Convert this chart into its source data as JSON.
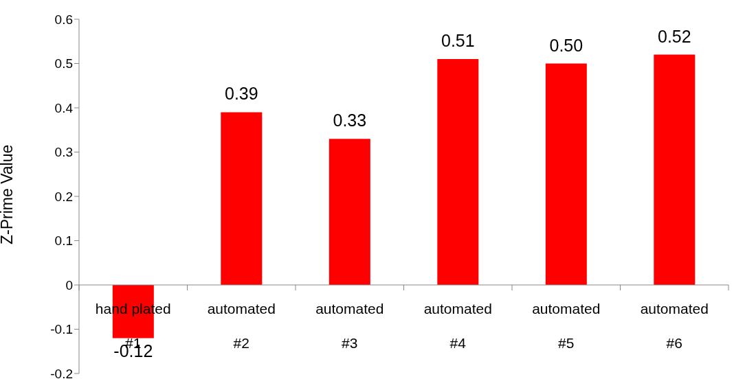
{
  "chart_data": {
    "type": "bar",
    "ylabel": "Z-Prime Value",
    "categories": [
      "hand plated\n#1",
      "automated\n#2",
      "automated\n#3",
      "automated\n#4",
      "automated\n#5",
      "automated\n#6"
    ],
    "values": [
      -0.12,
      0.39,
      0.33,
      0.51,
      0.5,
      0.52
    ],
    "value_labels": [
      "-0.12",
      "0.39",
      "0.33",
      "0.51",
      "0.50",
      "0.52"
    ],
    "color": "#ff0000",
    "ylim": [
      -0.2,
      0.6
    ],
    "yticks": [
      -0.2,
      -0.1,
      0,
      0.1,
      0.2,
      0.3,
      0.4,
      0.5,
      0.6
    ],
    "legend": false
  }
}
